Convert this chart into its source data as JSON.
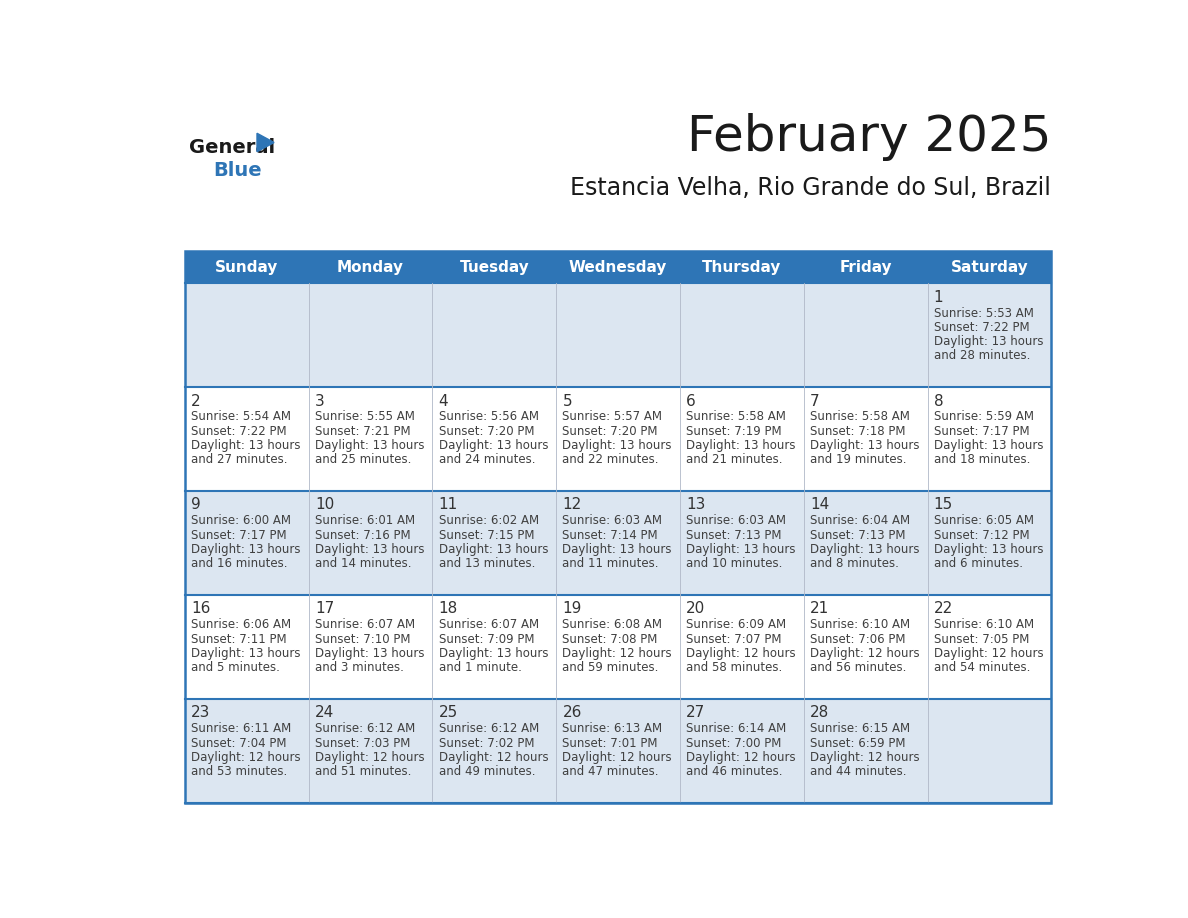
{
  "title": "February 2025",
  "subtitle": "Estancia Velha, Rio Grande do Sul, Brazil",
  "header_bg_color": "#2e75b6",
  "header_text_color": "#ffffff",
  "day_names": [
    "Sunday",
    "Monday",
    "Tuesday",
    "Wednesday",
    "Thursday",
    "Friday",
    "Saturday"
  ],
  "bg_color": "#ffffff",
  "cell_bg_light": "#dce6f1",
  "cell_bg_white": "#ffffff",
  "row_line_color": "#2e75b6",
  "date_text_color": "#333333",
  "info_text_color": "#404040",
  "calendar": [
    [
      null,
      null,
      null,
      null,
      null,
      null,
      {
        "day": "1",
        "sunrise": "5:53 AM",
        "sunset": "7:22 PM",
        "daylight_line1": "13 hours",
        "daylight_line2": "and 28 minutes."
      }
    ],
    [
      {
        "day": "2",
        "sunrise": "5:54 AM",
        "sunset": "7:22 PM",
        "daylight_line1": "13 hours",
        "daylight_line2": "and 27 minutes."
      },
      {
        "day": "3",
        "sunrise": "5:55 AM",
        "sunset": "7:21 PM",
        "daylight_line1": "13 hours",
        "daylight_line2": "and 25 minutes."
      },
      {
        "day": "4",
        "sunrise": "5:56 AM",
        "sunset": "7:20 PM",
        "daylight_line1": "13 hours",
        "daylight_line2": "and 24 minutes."
      },
      {
        "day": "5",
        "sunrise": "5:57 AM",
        "sunset": "7:20 PM",
        "daylight_line1": "13 hours",
        "daylight_line2": "and 22 minutes."
      },
      {
        "day": "6",
        "sunrise": "5:58 AM",
        "sunset": "7:19 PM",
        "daylight_line1": "13 hours",
        "daylight_line2": "and 21 minutes."
      },
      {
        "day": "7",
        "sunrise": "5:58 AM",
        "sunset": "7:18 PM",
        "daylight_line1": "13 hours",
        "daylight_line2": "and 19 minutes."
      },
      {
        "day": "8",
        "sunrise": "5:59 AM",
        "sunset": "7:17 PM",
        "daylight_line1": "13 hours",
        "daylight_line2": "and 18 minutes."
      }
    ],
    [
      {
        "day": "9",
        "sunrise": "6:00 AM",
        "sunset": "7:17 PM",
        "daylight_line1": "13 hours",
        "daylight_line2": "and 16 minutes."
      },
      {
        "day": "10",
        "sunrise": "6:01 AM",
        "sunset": "7:16 PM",
        "daylight_line1": "13 hours",
        "daylight_line2": "and 14 minutes."
      },
      {
        "day": "11",
        "sunrise": "6:02 AM",
        "sunset": "7:15 PM",
        "daylight_line1": "13 hours",
        "daylight_line2": "and 13 minutes."
      },
      {
        "day": "12",
        "sunrise": "6:03 AM",
        "sunset": "7:14 PM",
        "daylight_line1": "13 hours",
        "daylight_line2": "and 11 minutes."
      },
      {
        "day": "13",
        "sunrise": "6:03 AM",
        "sunset": "7:13 PM",
        "daylight_line1": "13 hours",
        "daylight_line2": "and 10 minutes."
      },
      {
        "day": "14",
        "sunrise": "6:04 AM",
        "sunset": "7:13 PM",
        "daylight_line1": "13 hours",
        "daylight_line2": "and 8 minutes."
      },
      {
        "day": "15",
        "sunrise": "6:05 AM",
        "sunset": "7:12 PM",
        "daylight_line1": "13 hours",
        "daylight_line2": "and 6 minutes."
      }
    ],
    [
      {
        "day": "16",
        "sunrise": "6:06 AM",
        "sunset": "7:11 PM",
        "daylight_line1": "13 hours",
        "daylight_line2": "and 5 minutes."
      },
      {
        "day": "17",
        "sunrise": "6:07 AM",
        "sunset": "7:10 PM",
        "daylight_line1": "13 hours",
        "daylight_line2": "and 3 minutes."
      },
      {
        "day": "18",
        "sunrise": "6:07 AM",
        "sunset": "7:09 PM",
        "daylight_line1": "13 hours",
        "daylight_line2": "and 1 minute."
      },
      {
        "day": "19",
        "sunrise": "6:08 AM",
        "sunset": "7:08 PM",
        "daylight_line1": "12 hours",
        "daylight_line2": "and 59 minutes."
      },
      {
        "day": "20",
        "sunrise": "6:09 AM",
        "sunset": "7:07 PM",
        "daylight_line1": "12 hours",
        "daylight_line2": "and 58 minutes."
      },
      {
        "day": "21",
        "sunrise": "6:10 AM",
        "sunset": "7:06 PM",
        "daylight_line1": "12 hours",
        "daylight_line2": "and 56 minutes."
      },
      {
        "day": "22",
        "sunrise": "6:10 AM",
        "sunset": "7:05 PM",
        "daylight_line1": "12 hours",
        "daylight_line2": "and 54 minutes."
      }
    ],
    [
      {
        "day": "23",
        "sunrise": "6:11 AM",
        "sunset": "7:04 PM",
        "daylight_line1": "12 hours",
        "daylight_line2": "and 53 minutes."
      },
      {
        "day": "24",
        "sunrise": "6:12 AM",
        "sunset": "7:03 PM",
        "daylight_line1": "12 hours",
        "daylight_line2": "and 51 minutes."
      },
      {
        "day": "25",
        "sunrise": "6:12 AM",
        "sunset": "7:02 PM",
        "daylight_line1": "12 hours",
        "daylight_line2": "and 49 minutes."
      },
      {
        "day": "26",
        "sunrise": "6:13 AM",
        "sunset": "7:01 PM",
        "daylight_line1": "12 hours",
        "daylight_line2": "and 47 minutes."
      },
      {
        "day": "27",
        "sunrise": "6:14 AM",
        "sunset": "7:00 PM",
        "daylight_line1": "12 hours",
        "daylight_line2": "and 46 minutes."
      },
      {
        "day": "28",
        "sunrise": "6:15 AM",
        "sunset": "6:59 PM",
        "daylight_line1": "12 hours",
        "daylight_line2": "and 44 minutes."
      },
      null
    ]
  ]
}
